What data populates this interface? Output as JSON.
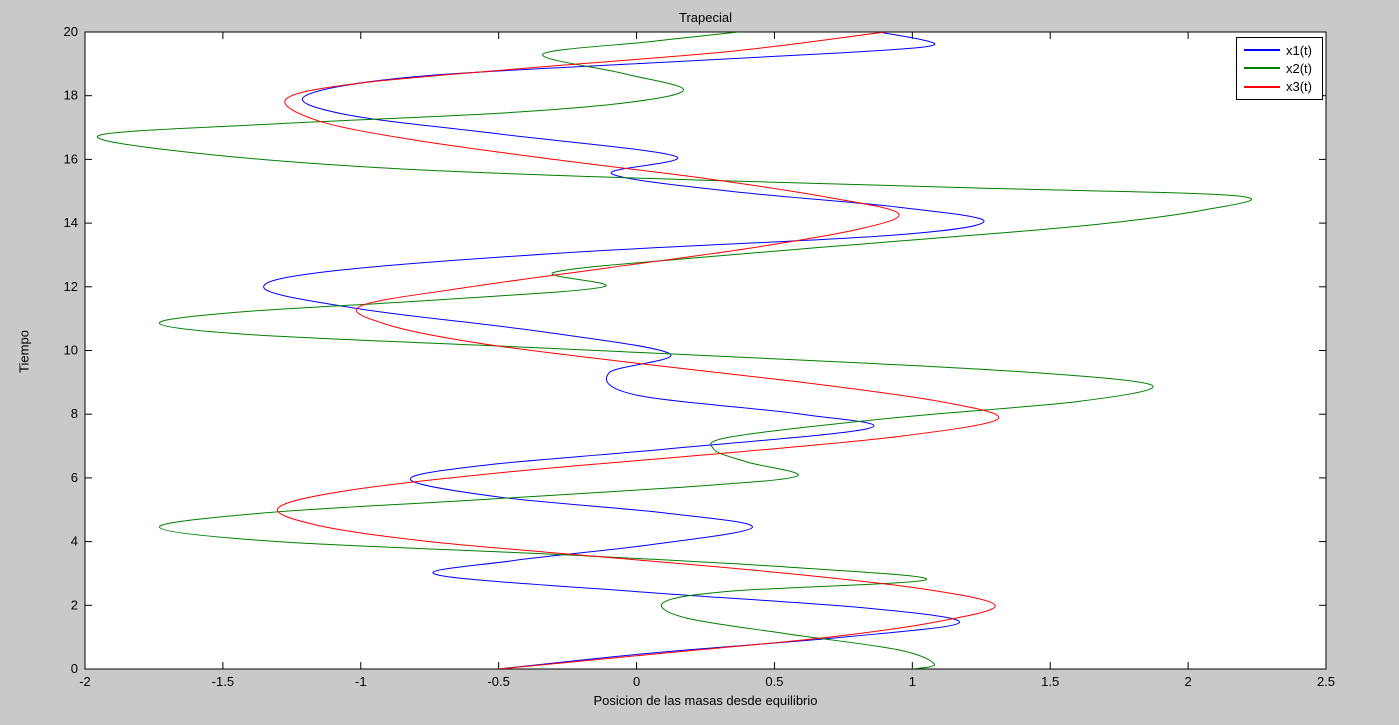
{
  "window": {
    "background_color": "#c9c9c9",
    "plot_background_color": "#ffffff",
    "axis_color": "#000000"
  },
  "chart_data": {
    "type": "line",
    "title": "Trapecial",
    "xlabel": "Posicion de las masas desde equilibrio",
    "ylabel": "Tiempo",
    "xlim": [
      -2,
      2.5
    ],
    "ylim": [
      0,
      20
    ],
    "xticks": [
      -2,
      -1.5,
      -1,
      -0.5,
      0,
      0.5,
      1,
      1.5,
      2,
      2.5
    ],
    "yticks": [
      0,
      2,
      4,
      6,
      8,
      10,
      12,
      14,
      16,
      18,
      20
    ],
    "grid": false,
    "orientation": "position on x-axis, time on y-axis",
    "legend": {
      "position": "top-right",
      "entries": [
        "x1(t)",
        "x2(t)",
        "x3(t)"
      ]
    },
    "series": [
      {
        "name": "x1(t)",
        "color": "#0000ff",
        "points_format": "[time, position]",
        "points": [
          [
            0,
            -0.5
          ],
          [
            0.5,
            0.05
          ],
          [
            1.0,
            0.75
          ],
          [
            1.45,
            1.17
          ],
          [
            1.9,
            0.85
          ],
          [
            2.4,
            0.05
          ],
          [
            2.95,
            -0.72
          ],
          [
            3.4,
            -0.45
          ],
          [
            3.9,
            0.05
          ],
          [
            4.45,
            0.42
          ],
          [
            4.9,
            0.1
          ],
          [
            5.4,
            -0.5
          ],
          [
            5.95,
            -0.82
          ],
          [
            6.4,
            -0.55
          ],
          [
            6.9,
            0.1
          ],
          [
            7.55,
            0.84
          ],
          [
            8.0,
            0.6
          ],
          [
            8.6,
            0.0
          ],
          [
            9.3,
            -0.1
          ],
          [
            9.9,
            0.12
          ],
          [
            10.6,
            -0.35
          ],
          [
            11.3,
            -1.0
          ],
          [
            11.95,
            -1.35
          ],
          [
            12.5,
            -1.1
          ],
          [
            13.1,
            -0.2
          ],
          [
            13.6,
            0.9
          ],
          [
            14.05,
            1.26
          ],
          [
            14.5,
            0.95
          ],
          [
            15.0,
            0.34
          ],
          [
            15.55,
            -0.09
          ],
          [
            16.1,
            0.14
          ],
          [
            16.8,
            -0.5
          ],
          [
            17.4,
            -1.05
          ],
          [
            18.0,
            -1.2
          ],
          [
            18.6,
            -0.8
          ],
          [
            19.05,
            0.1
          ],
          [
            19.35,
            0.75
          ],
          [
            19.6,
            1.08
          ],
          [
            20,
            0.88
          ]
        ]
      },
      {
        "name": "x2(t)",
        "color": "#007f00",
        "points_format": "[time, position]",
        "points": [
          [
            0,
            1.0
          ],
          [
            0.15,
            1.08
          ],
          [
            0.6,
            0.95
          ],
          [
            1.1,
            0.55
          ],
          [
            1.6,
            0.18
          ],
          [
            2.1,
            0.1
          ],
          [
            2.45,
            0.35
          ],
          [
            2.8,
            1.05
          ],
          [
            3.2,
            0.55
          ],
          [
            3.6,
            -0.3
          ],
          [
            4.0,
            -1.3
          ],
          [
            4.45,
            -1.73
          ],
          [
            4.9,
            -1.35
          ],
          [
            5.3,
            -0.6
          ],
          [
            5.7,
            0.15
          ],
          [
            6.05,
            0.58
          ],
          [
            6.5,
            0.4
          ],
          [
            6.9,
            0.28
          ],
          [
            7.3,
            0.35
          ],
          [
            7.9,
            0.95
          ],
          [
            8.4,
            1.6
          ],
          [
            8.9,
            1.87
          ],
          [
            9.3,
            1.45
          ],
          [
            9.7,
            0.6
          ],
          [
            10.1,
            -0.4
          ],
          [
            10.5,
            -1.4
          ],
          [
            10.85,
            -1.73
          ],
          [
            11.2,
            -1.45
          ],
          [
            11.6,
            -0.7
          ],
          [
            12.0,
            -0.12
          ],
          [
            12.45,
            -0.3
          ],
          [
            12.9,
            0.2
          ],
          [
            13.4,
            0.9
          ],
          [
            13.9,
            1.6
          ],
          [
            14.4,
            2.05
          ],
          [
            14.85,
            2.18
          ],
          [
            15.1,
            1.25
          ],
          [
            15.35,
            0.23
          ],
          [
            15.7,
            -0.85
          ],
          [
            16.2,
            -1.6
          ],
          [
            16.75,
            -1.95
          ],
          [
            17.1,
            -1.35
          ],
          [
            17.45,
            -0.5
          ],
          [
            17.8,
            -0.02
          ],
          [
            18.2,
            0.17
          ],
          [
            18.7,
            -0.05
          ],
          [
            19.3,
            -0.34
          ],
          [
            19.7,
            0.05
          ],
          [
            20,
            0.37
          ]
        ]
      },
      {
        "name": "x3(t)",
        "color": "#ff0000",
        "points_format": "[time, position]",
        "points": [
          [
            0,
            -0.5
          ],
          [
            0.5,
            0.1
          ],
          [
            1.0,
            0.7
          ],
          [
            1.5,
            1.1
          ],
          [
            2.0,
            1.3
          ],
          [
            2.5,
            1.05
          ],
          [
            3.0,
            0.55
          ],
          [
            3.5,
            -0.1
          ],
          [
            4.0,
            -0.75
          ],
          [
            4.5,
            -1.15
          ],
          [
            5.05,
            -1.3
          ],
          [
            5.6,
            -1.05
          ],
          [
            6.2,
            -0.45
          ],
          [
            6.8,
            0.35
          ],
          [
            7.3,
            0.95
          ],
          [
            7.85,
            1.31
          ],
          [
            8.4,
            1.1
          ],
          [
            9.0,
            0.6
          ],
          [
            9.6,
            0.0
          ],
          [
            10.2,
            -0.55
          ],
          [
            10.8,
            -0.9
          ],
          [
            11.4,
            -1.0
          ],
          [
            12.0,
            -0.6
          ],
          [
            12.6,
            -0.1
          ],
          [
            13.2,
            0.4
          ],
          [
            13.8,
            0.8
          ],
          [
            14.3,
            0.95
          ],
          [
            14.8,
            0.7
          ],
          [
            15.4,
            0.25
          ],
          [
            16.0,
            -0.3
          ],
          [
            16.6,
            -0.8
          ],
          [
            17.2,
            -1.15
          ],
          [
            17.9,
            -1.27
          ],
          [
            18.4,
            -1.0
          ],
          [
            18.9,
            -0.35
          ],
          [
            19.4,
            0.35
          ],
          [
            20,
            0.9
          ]
        ]
      }
    ]
  }
}
